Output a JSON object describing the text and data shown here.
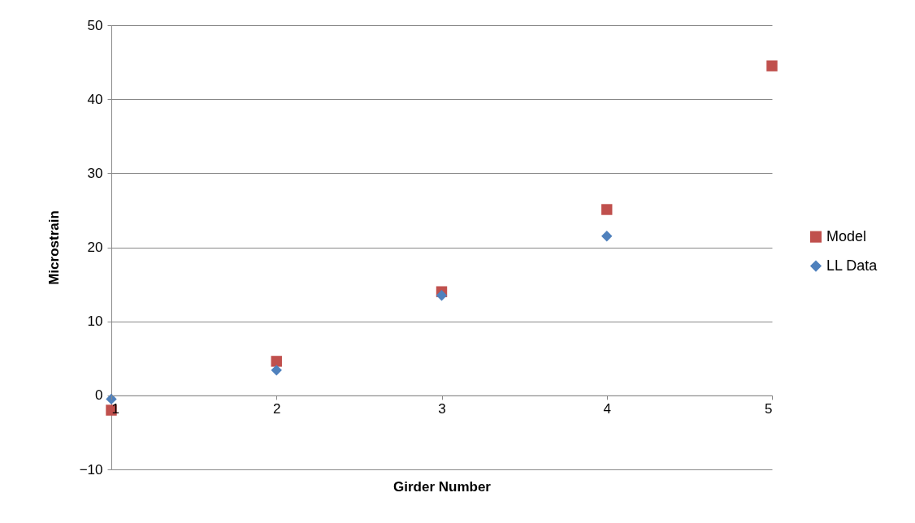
{
  "chart_data": {
    "type": "scatter",
    "xlabel": "Girder Number",
    "ylabel": "Microstrain",
    "x": [
      1,
      2,
      3,
      4,
      5
    ],
    "series": [
      {
        "name": "Model",
        "color": "#c0504d",
        "marker": "square",
        "values": [
          -2.0,
          4.6,
          14.0,
          25.1,
          44.5
        ]
      },
      {
        "name": "LL Data",
        "color": "#4f81bd",
        "marker": "diamond",
        "values": [
          -0.5,
          3.4,
          13.5,
          21.5,
          null
        ]
      }
    ],
    "xlim": [
      1,
      5
    ],
    "xticks": [
      1,
      2,
      3,
      4,
      5
    ],
    "ylim": [
      -10,
      50
    ],
    "yticks": [
      -10,
      0,
      10,
      20,
      30,
      40,
      50
    ],
    "grid": "y",
    "legend": "right"
  }
}
